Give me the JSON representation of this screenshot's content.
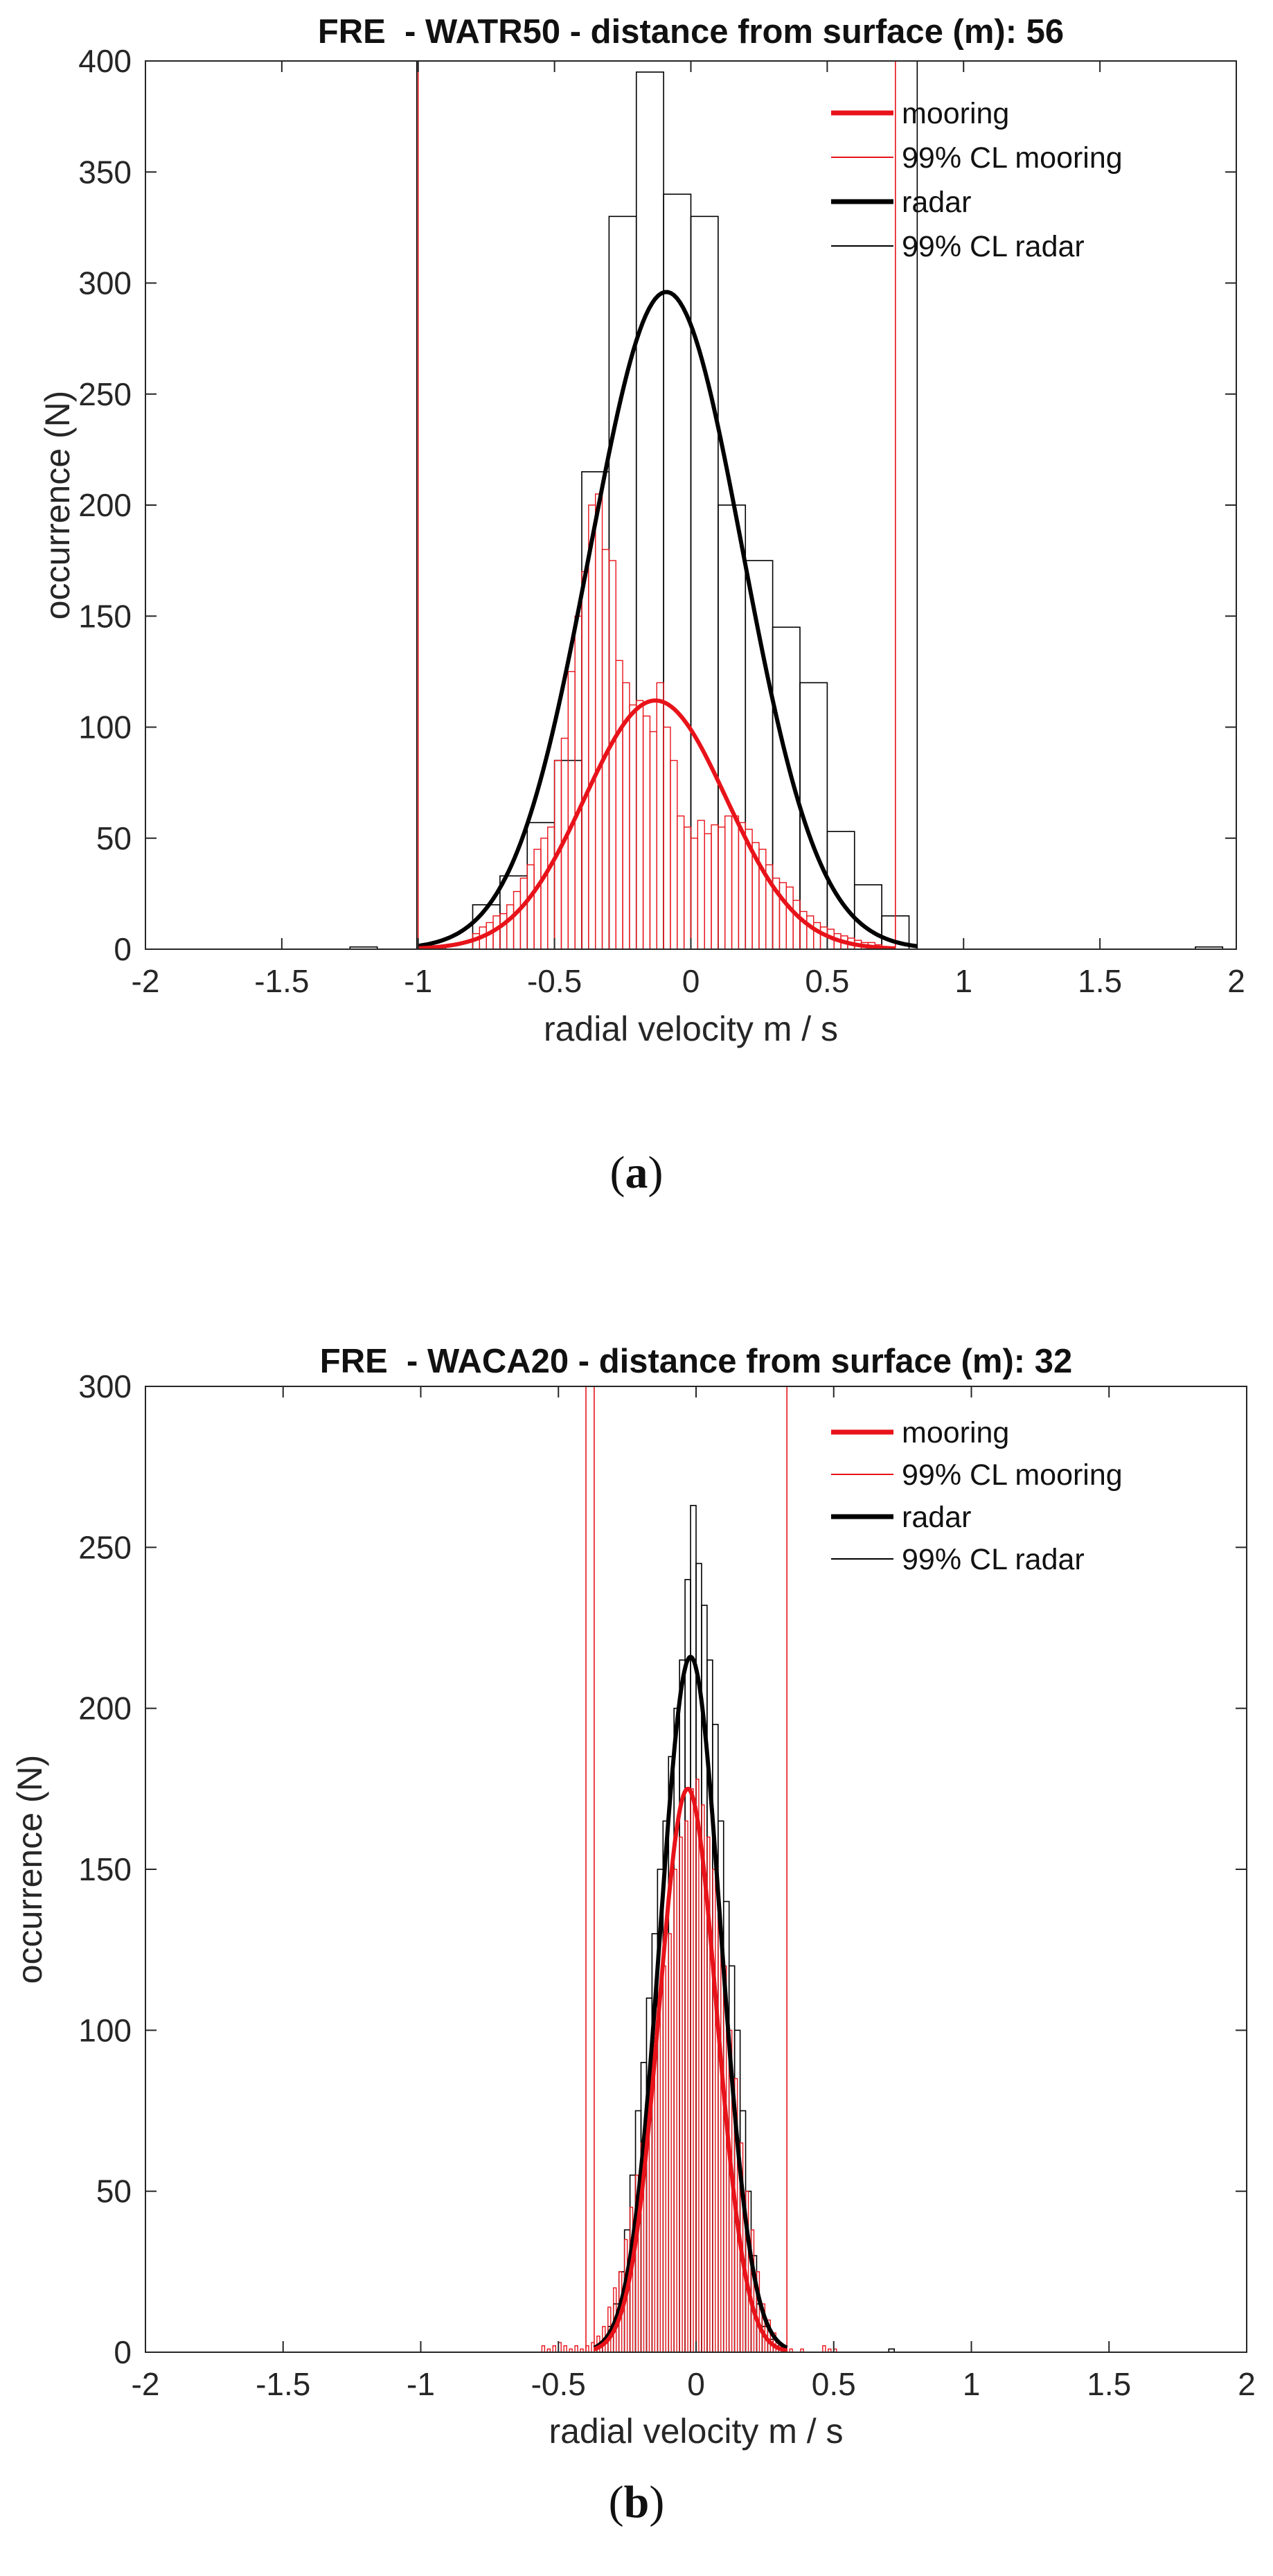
{
  "chart_data": [
    {
      "type": "bar",
      "panel": "a",
      "title": "FRE  - WATR50 - distance from surface (m): 56",
      "xlabel": "radial velocity m / s",
      "ylabel": "occurrence (N)",
      "xlim": [
        -2,
        2
      ],
      "ylim": [
        0,
        400
      ],
      "xticks": [
        -2,
        -1.5,
        -1,
        -0.5,
        0,
        0.5,
        1,
        1.5,
        2
      ],
      "yticks": [
        0,
        50,
        100,
        150,
        200,
        250,
        300,
        350,
        400
      ],
      "xtick_labels": [
        "-2",
        "-1.5",
        "-1",
        "-0.5",
        "0",
        "0.5",
        "1",
        "1.5",
        "2"
      ],
      "ytick_labels": [
        "0",
        "50",
        "100",
        "150",
        "200",
        "250",
        "300",
        "350",
        "400"
      ],
      "legend_position": "top-right",
      "legend": [
        {
          "label": "mooring",
          "color": "#e8131a",
          "style": "thick"
        },
        {
          "label": "99% CL mooring",
          "color": "#e8131a",
          "style": "thin"
        },
        {
          "label": "radar",
          "color": "#000000",
          "style": "thick"
        },
        {
          "label": "99% CL radar",
          "color": "#000000",
          "style": "thin"
        }
      ],
      "radar_hist": {
        "bin_width": 0.1,
        "bin_starts": [
          -1.25,
          -1.0,
          -0.8,
          -0.7,
          -0.6,
          -0.5,
          -0.4,
          -0.3,
          -0.2,
          -0.1,
          0.0,
          0.1,
          0.2,
          0.3,
          0.4,
          0.5,
          0.6,
          0.7,
          1.85
        ],
        "counts": [
          1,
          1,
          20,
          33,
          57,
          85,
          215,
          330,
          395,
          340,
          330,
          200,
          175,
          145,
          120,
          53,
          29,
          15,
          1
        ]
      },
      "mooring_hist": {
        "bin_width": 0.025,
        "bin_starts": [
          -0.8,
          -0.775,
          -0.75,
          -0.725,
          -0.7,
          -0.675,
          -0.65,
          -0.625,
          -0.6,
          -0.575,
          -0.55,
          -0.525,
          -0.5,
          -0.475,
          -0.45,
          -0.425,
          -0.4,
          -0.375,
          -0.35,
          -0.325,
          -0.3,
          -0.275,
          -0.25,
          -0.225,
          -0.2,
          -0.175,
          -0.15,
          -0.125,
          -0.1,
          -0.075,
          -0.05,
          -0.025,
          0.0,
          0.025,
          0.05,
          0.075,
          0.1,
          0.125,
          0.15,
          0.175,
          0.2,
          0.225,
          0.25,
          0.275,
          0.3,
          0.325,
          0.35,
          0.375,
          0.4,
          0.425,
          0.45,
          0.475,
          0.5,
          0.525,
          0.55,
          0.575,
          0.6,
          0.625,
          0.65,
          0.675,
          0.7
        ],
        "counts": [
          7,
          10,
          12,
          15,
          16,
          20,
          26,
          32,
          38,
          45,
          50,
          55,
          85,
          95,
          125,
          150,
          170,
          200,
          205,
          180,
          175,
          130,
          120,
          110,
          112,
          105,
          98,
          120,
          100,
          85,
          60,
          55,
          50,
          58,
          52,
          56,
          55,
          60,
          60,
          57,
          54,
          48,
          45,
          38,
          32,
          30,
          28,
          22,
          17,
          15,
          12,
          10,
          9,
          7,
          6,
          5,
          4,
          3,
          3,
          2,
          1
        ]
      },
      "mooring_fit": {
        "mean": -0.13,
        "std": 0.26,
        "peak": 112,
        "x_range": [
          -1.0,
          0.75
        ]
      },
      "radar_fit": {
        "mean": -0.09,
        "std": 0.28,
        "peak": 296,
        "x_range": [
          -1.0,
          0.83
        ]
      },
      "mooring_cl_lines": [
        -1.0,
        0.75
      ],
      "radar_cl_lines": [
        -1.005,
        0.83
      ]
    },
    {
      "type": "bar",
      "panel": "b",
      "title": "FRE  - WACA20 - distance from surface (m): 32",
      "xlabel": "radial velocity m / s",
      "ylabel": "occurrence (N)",
      "xlim": [
        -2,
        2
      ],
      "ylim": [
        0,
        300
      ],
      "xticks": [
        -2,
        -1.5,
        -1,
        -0.5,
        0,
        0.5,
        1,
        1.5,
        2
      ],
      "yticks": [
        0,
        50,
        100,
        150,
        200,
        250,
        300
      ],
      "xtick_labels": [
        "-2",
        "-1.5",
        "-1",
        "-0.5",
        "0",
        "0.5",
        "1",
        "1.5",
        "2"
      ],
      "ytick_labels": [
        "0",
        "50",
        "100",
        "150",
        "200",
        "250",
        "300"
      ],
      "legend_position": "top-right",
      "legend": [
        {
          "label": "mooring",
          "color": "#e8131a",
          "style": "thick"
        },
        {
          "label": "99% CL mooring",
          "color": "#e8131a",
          "style": "thin"
        },
        {
          "label": "radar",
          "color": "#000000",
          "style": "thick"
        },
        {
          "label": "99% CL radar",
          "color": "#000000",
          "style": "thin"
        }
      ],
      "radar_hist": {
        "bin_width": 0.02,
        "bin_starts": [
          -0.36,
          -0.34,
          -0.32,
          -0.3,
          -0.28,
          -0.26,
          -0.24,
          -0.22,
          -0.2,
          -0.18,
          -0.16,
          -0.14,
          -0.12,
          -0.1,
          -0.08,
          -0.06,
          -0.04,
          -0.02,
          0.0,
          0.02,
          0.04,
          0.06,
          0.08,
          0.1,
          0.12,
          0.14,
          0.16,
          0.18,
          0.2,
          0.22,
          0.24,
          0.26,
          0.28,
          0.7
        ],
        "counts": [
          2,
          4,
          8,
          15,
          25,
          38,
          55,
          75,
          90,
          110,
          130,
          150,
          165,
          185,
          200,
          215,
          240,
          263,
          245,
          232,
          215,
          195,
          165,
          140,
          120,
          100,
          75,
          50,
          30,
          15,
          8,
          4,
          2,
          1
        ]
      },
      "mooring_hist": {
        "bin_width": 0.01,
        "bin_starts": [
          -0.56,
          -0.54,
          -0.52,
          -0.5,
          -0.48,
          -0.46,
          -0.44,
          -0.42,
          -0.4,
          -0.38,
          -0.36,
          -0.34,
          -0.32,
          -0.3,
          -0.28,
          -0.26,
          -0.24,
          -0.22,
          -0.2,
          -0.18,
          -0.16,
          -0.14,
          -0.12,
          -0.1,
          -0.08,
          -0.06,
          -0.04,
          -0.02,
          0.0,
          0.02,
          0.04,
          0.06,
          0.08,
          0.1,
          0.12,
          0.14,
          0.16,
          0.18,
          0.2,
          0.22,
          0.24,
          0.26,
          0.28,
          0.3,
          0.32,
          0.34,
          0.38,
          0.46,
          0.48,
          0.5
        ],
        "counts": [
          2,
          1,
          2,
          3,
          2,
          1,
          2,
          1,
          2,
          3,
          5,
          8,
          14,
          20,
          25,
          35,
          45,
          55,
          65,
          80,
          90,
          105,
          120,
          130,
          150,
          160,
          165,
          175,
          178,
          170,
          160,
          150,
          135,
          120,
          100,
          85,
          65,
          50,
          38,
          25,
          15,
          10,
          6,
          3,
          2,
          1,
          1,
          2,
          1,
          1
        ]
      },
      "mooring_fit": {
        "mean": -0.03,
        "std": 0.105,
        "peak": 175,
        "x_range": [
          -0.37,
          0.33
        ]
      },
      "radar_fit": {
        "mean": -0.02,
        "std": 0.11,
        "peak": 216,
        "x_range": [
          -0.37,
          0.33
        ]
      },
      "mooring_cl_lines": [
        -0.4,
        -0.37,
        0.33
      ],
      "radar_cl_lines": []
    }
  ],
  "captions": {
    "a": {
      "open": "(",
      "letter": "a",
      "close": ")"
    },
    "b": {
      "open": "(",
      "letter": "b",
      "close": ")"
    }
  },
  "colors": {
    "mooring": "#e8131a",
    "radar": "#000000",
    "axes": "#262626",
    "grid_text": "#262626"
  }
}
